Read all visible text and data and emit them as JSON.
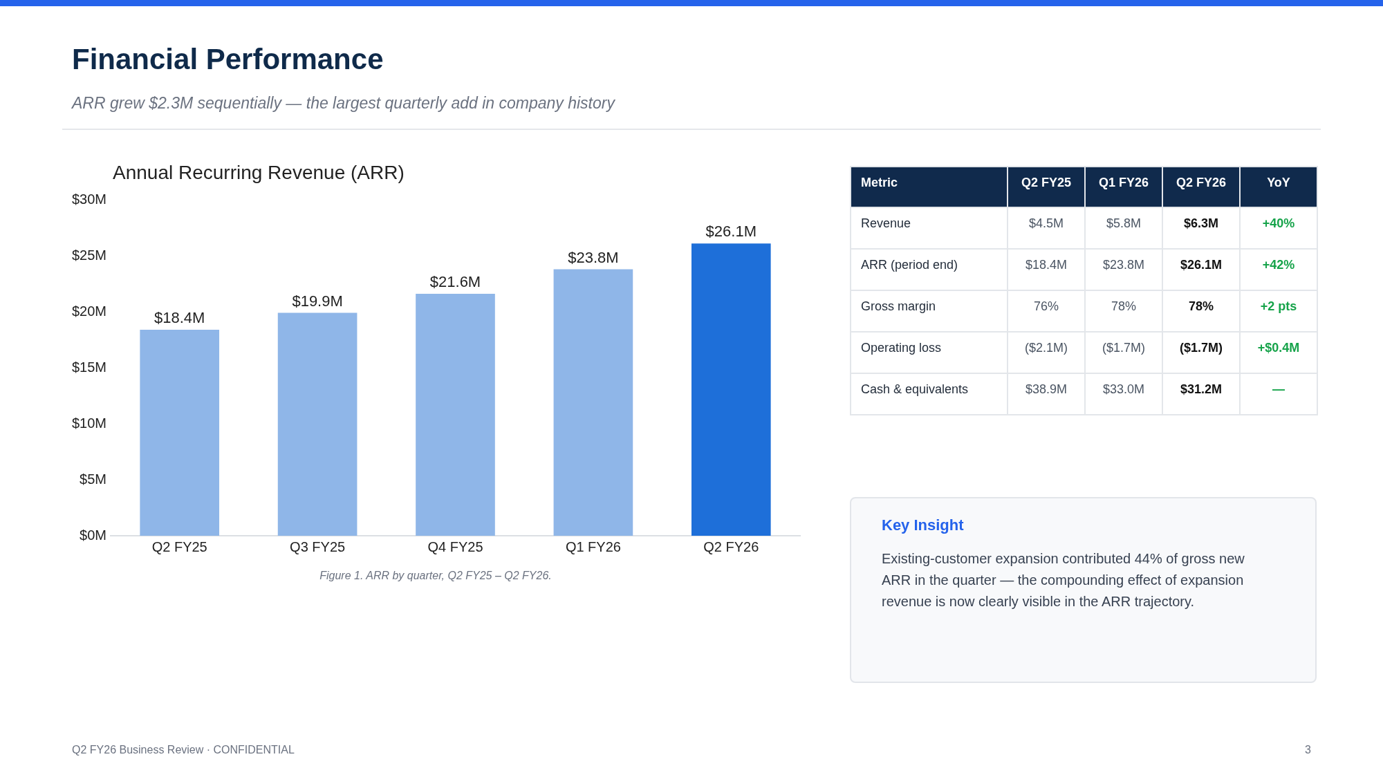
{
  "chart_data": [
    {
      "type": "other",
      "title": "Financial Performance",
      "subtitle": "ARR grew $2.3M sequentially — the largest quarterly add in company history"
    },
    {
      "type": "bar",
      "title": "Annual Recurring Revenue (ARR)",
      "categories": [
        "Q2 FY25",
        "Q3 FY25",
        "Q4 FY25",
        "Q1 FY26",
        "Q2 FY26"
      ],
      "values": [
        18.4,
        19.9,
        21.6,
        23.8,
        26.1
      ],
      "colors": [
        "#8fb6e8",
        "#8fb6e8",
        "#8fb6e8",
        "#8fb6e8",
        "#1e6fd9"
      ],
      "value_labels": [
        "$18.4M",
        "$19.9M",
        "$21.6M",
        "$23.8M",
        "$26.1M"
      ],
      "ylim": [
        0,
        30
      ],
      "yticks": [
        {
          "value": 0,
          "label": "$0M"
        },
        {
          "value": 5,
          "label": "$5M"
        },
        {
          "value": 10,
          "label": "$10M"
        },
        {
          "value": 15,
          "label": "$15M"
        },
        {
          "value": 20,
          "label": "$20M"
        },
        {
          "value": 25,
          "label": "$25M"
        },
        {
          "value": 30,
          "label": "$30M"
        }
      ],
      "annotations": [
        "Figure 1. ARR by quarter, Q2 FY25 – Q2 FY26."
      ]
    },
    {
      "type": "other",
      "categories": [
        "Metric",
        "Q2 FY25",
        "Q1 FY26",
        "Q2 FY26",
        "YoY"
      ],
      "cell_labels": [
        [
          "Revenue",
          "$4.5M",
          "$5.8M",
          "$6.3M",
          "+40%"
        ],
        [
          "ARR (period end)",
          "$18.4M",
          "$23.8M",
          "$26.1M",
          "+42%"
        ],
        [
          "Gross margin",
          "76%",
          "78%",
          "78%",
          "+2 pts"
        ],
        [
          "Operating loss",
          "($2.1M)",
          "($1.7M)",
          "($1.7M)",
          "+$0.4M"
        ],
        [
          "Cash & equivalents",
          "$38.9M",
          "$33.0M",
          "$31.2M",
          "—"
        ]
      ]
    },
    {
      "type": "other",
      "title": "Key Insight",
      "annotations": [
        "Existing-customer expansion contributed 44% of gross new ARR in the quarter — the compounding effect of expansion revenue is now clearly visible in the ARR trajectory."
      ]
    },
    {
      "type": "other",
      "annotations": [
        "Q2 FY26 Business Review · CONFIDENTIAL",
        "3"
      ]
    }
  ]
}
